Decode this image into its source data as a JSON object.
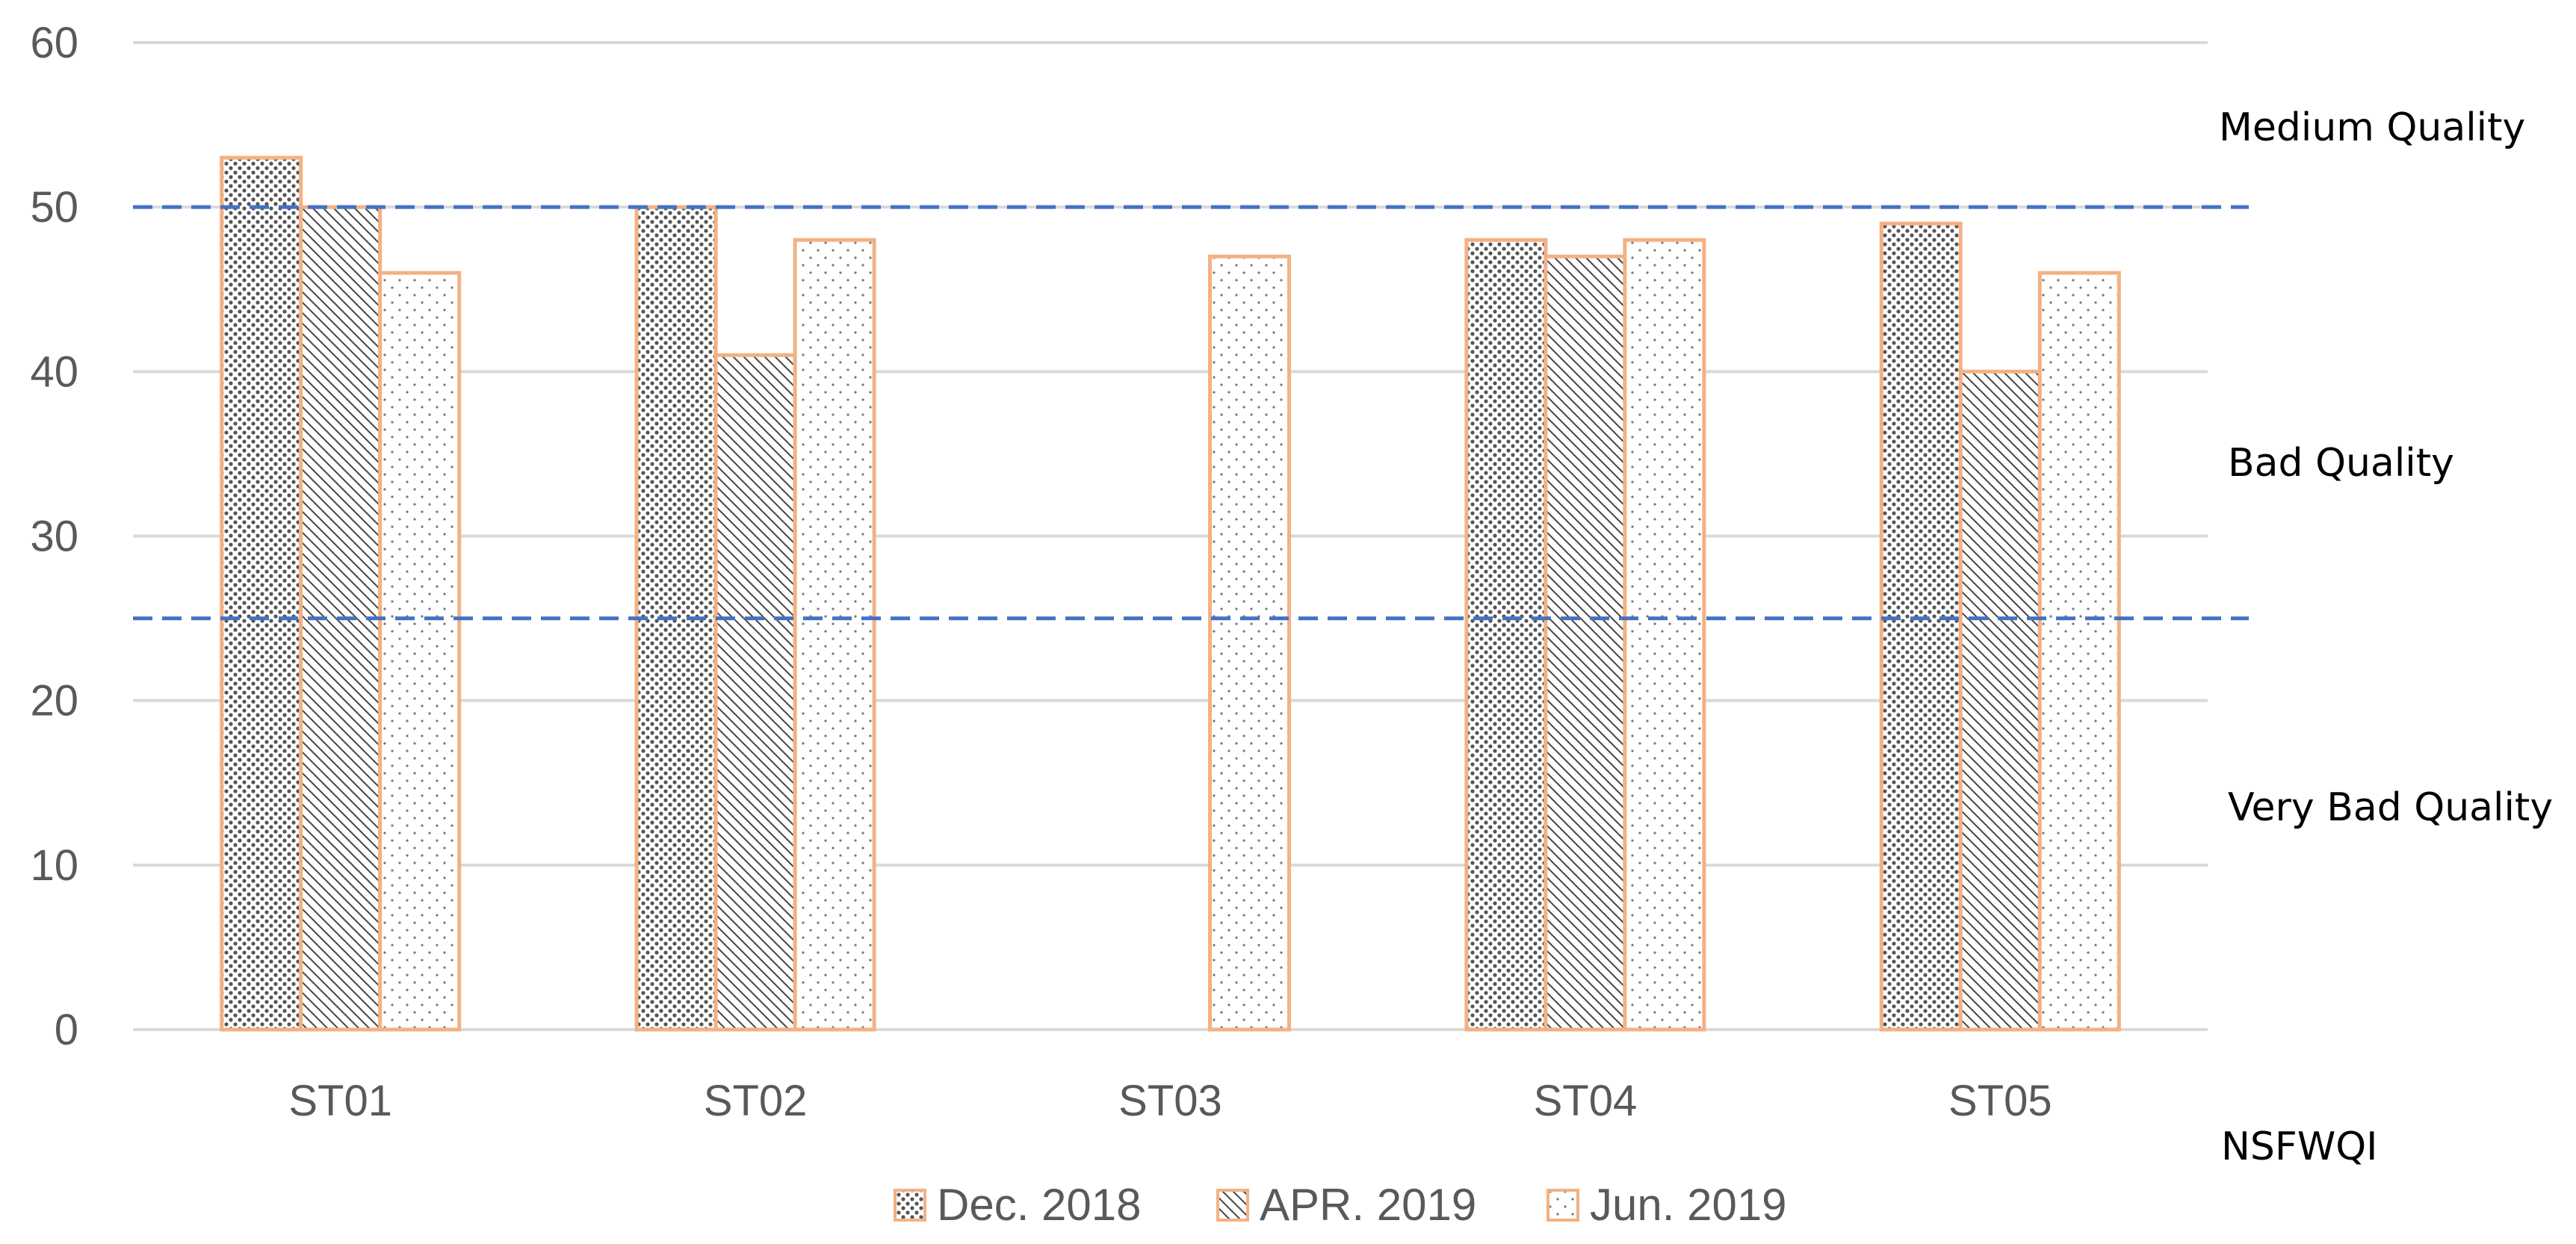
{
  "chart_data": {
    "type": "bar",
    "categories": [
      "ST01",
      "ST02",
      "ST03",
      "ST04",
      "ST05"
    ],
    "series": [
      {
        "name": "Dec. 2018",
        "values": [
          53,
          50,
          null,
          48,
          49
        ],
        "pattern": "dense-dots"
      },
      {
        "name": "APR. 2019",
        "values": [
          50,
          41,
          null,
          47,
          40
        ],
        "pattern": "diagonal"
      },
      {
        "name": "Jun. 2019",
        "values": [
          46,
          48,
          47,
          48,
          46
        ],
        "pattern": "sparse-dots"
      }
    ],
    "ylim": [
      0,
      60
    ],
    "yticks": [
      0,
      10,
      20,
      30,
      40,
      50,
      60
    ],
    "grid": true,
    "legend": "bottom",
    "reference_lines": [
      50,
      25
    ],
    "annotations": [
      "Medium Quality",
      "Bad Quality",
      "Very Bad Quality",
      "NSFWQI"
    ],
    "colors": {
      "bar_border": "#F4B183",
      "reference_line": "#4472C4",
      "grid": "#D9D9D9",
      "text": "#595959"
    }
  }
}
